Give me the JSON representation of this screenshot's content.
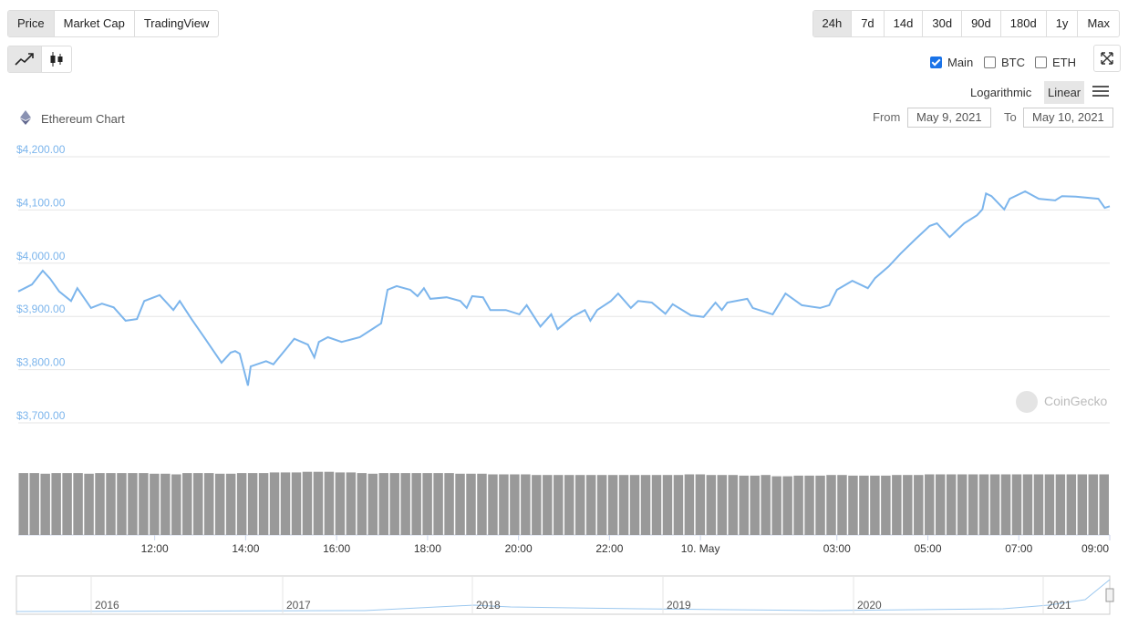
{
  "tabs": [
    "Price",
    "Market Cap",
    "TradingView"
  ],
  "ranges": [
    "24h",
    "7d",
    "14d",
    "30d",
    "90d",
    "180d",
    "1y",
    "Max"
  ],
  "checkboxes": [
    {
      "label": "Main",
      "checked": true
    },
    {
      "label": "BTC",
      "checked": false
    },
    {
      "label": "ETH",
      "checked": false
    }
  ],
  "scale_options": [
    "Logarithmic",
    "Linear"
  ],
  "chart_name": "Ethereum Chart",
  "date_range": {
    "from_label": "From",
    "from": "May 9, 2021",
    "to_label": "To",
    "to": "May 10, 2021"
  },
  "watermark": "CoinGecko",
  "chart_data": {
    "type": "line",
    "series": [
      {
        "name": "Price",
        "color": "#7cb5ec",
        "x": [
          9.0,
          9.3,
          9.54,
          9.7,
          9.9,
          10.16,
          10.3,
          10.6,
          10.84,
          11.1,
          11.36,
          11.61,
          11.77,
          12.11,
          12.41,
          12.55,
          12.81,
          13.11,
          13.47,
          13.67,
          13.77,
          13.87,
          14.05,
          14.11,
          14.45,
          14.61,
          14.89,
          15.07,
          15.37,
          15.51,
          15.61,
          15.81,
          16.11,
          16.51,
          16.82,
          16.98,
          17.12,
          17.32,
          17.62,
          17.78,
          17.92,
          18.06,
          18.42,
          18.72,
          18.86,
          18.98,
          19.22,
          19.38,
          19.72,
          20.02,
          20.18,
          20.48,
          20.72,
          20.86,
          21.18,
          21.46,
          21.58,
          21.73,
          22.03,
          22.19,
          22.47,
          22.63,
          22.93,
          23.23,
          23.39,
          23.79,
          24.07,
          24.33,
          24.47,
          24.59,
          25.03,
          25.15,
          25.59,
          25.87,
          26.23,
          26.63,
          26.83,
          27.0,
          27.34,
          27.68,
          27.84,
          28.14,
          28.4,
          28.74,
          29.04,
          29.2,
          29.48,
          29.8,
          30.08,
          30.2,
          30.28,
          30.4,
          30.68,
          30.8,
          31.14,
          31.44,
          31.8,
          31.95,
          32.25,
          32.75,
          32.89,
          33.0
        ],
        "values": [
          3947,
          3960,
          3986,
          3971,
          3947,
          3929,
          3953,
          3916,
          3924,
          3917,
          3892,
          3895,
          3929,
          3940,
          3912,
          3929,
          3895,
          3858,
          3813,
          3832,
          3835,
          3830,
          3770,
          3806,
          3816,
          3810,
          3839,
          3858,
          3847,
          3823,
          3852,
          3861,
          3852,
          3861,
          3878,
          3887,
          3950,
          3957,
          3950,
          3938,
          3953,
          3933,
          3936,
          3929,
          3916,
          3938,
          3936,
          3912,
          3912,
          3904,
          3921,
          3881,
          3904,
          3876,
          3899,
          3912,
          3892,
          3912,
          3929,
          3943,
          3916,
          3929,
          3926,
          3905,
          3923,
          3902,
          3899,
          3926,
          3912,
          3926,
          3933,
          3916,
          3904,
          3943,
          3921,
          3916,
          3921,
          3950,
          3967,
          3953,
          3972,
          3994,
          4018,
          4046,
          4070,
          4075,
          4049,
          4075,
          4090,
          4101,
          4131,
          4126,
          4101,
          4121,
          4135,
          4121,
          4118,
          4126,
          4125,
          4121,
          4104,
          4107
        ]
      }
    ],
    "volume": {
      "color": "#999999",
      "ylim": [
        0,
        100
      ],
      "values": [
        97,
        97,
        96,
        97,
        97,
        97,
        96,
        97,
        97,
        97,
        97,
        97,
        96,
        96,
        95,
        97,
        97,
        97,
        96,
        96,
        97,
        97,
        97,
        98,
        98,
        98,
        99,
        99,
        99,
        98,
        98,
        97,
        96,
        97,
        97,
        97,
        97,
        97,
        97,
        97,
        96,
        96,
        96,
        95,
        95,
        95,
        95,
        94,
        94,
        94,
        94,
        94,
        94,
        94,
        94,
        94,
        94,
        94,
        94,
        94,
        94,
        95,
        95,
        94,
        94,
        94,
        93,
        93,
        94,
        92,
        92,
        93,
        93,
        93,
        94,
        94,
        93,
        93,
        93,
        93,
        94,
        94,
        94,
        95,
        95,
        95,
        95,
        95,
        95,
        95,
        95,
        95,
        95,
        95,
        95,
        95,
        95,
        95,
        95,
        95
      ]
    },
    "xlim": [
      9,
      33
    ],
    "xticks": [
      {
        "value": 12,
        "label": "12:00"
      },
      {
        "value": 14,
        "label": "14:00"
      },
      {
        "value": 16,
        "label": "16:00"
      },
      {
        "value": 18,
        "label": "18:00"
      },
      {
        "value": 20,
        "label": "20:00"
      },
      {
        "value": 22,
        "label": "22:00"
      },
      {
        "value": 24,
        "label": "10. May"
      },
      {
        "value": 27,
        "label": "03:00"
      },
      {
        "value": 29,
        "label": "05:00"
      },
      {
        "value": 31,
        "label": "07:00"
      },
      {
        "value": 33,
        "label": "09:00"
      }
    ],
    "ylim": [
      3700,
      4200
    ],
    "yticks": [
      {
        "value": 3700,
        "label": "$3,700.00"
      },
      {
        "value": 3800,
        "label": "$3,800.00"
      },
      {
        "value": 3900,
        "label": "$3,900.00"
      },
      {
        "value": 4000,
        "label": "$4,000.00"
      },
      {
        "value": 4100,
        "label": "$4,100.00"
      },
      {
        "value": 4200,
        "label": "$4,200.00"
      }
    ],
    "grid": true
  },
  "navigator": {
    "labels": [
      "2016",
      "2017",
      "2018",
      "2019",
      "2020",
      "2021"
    ]
  }
}
